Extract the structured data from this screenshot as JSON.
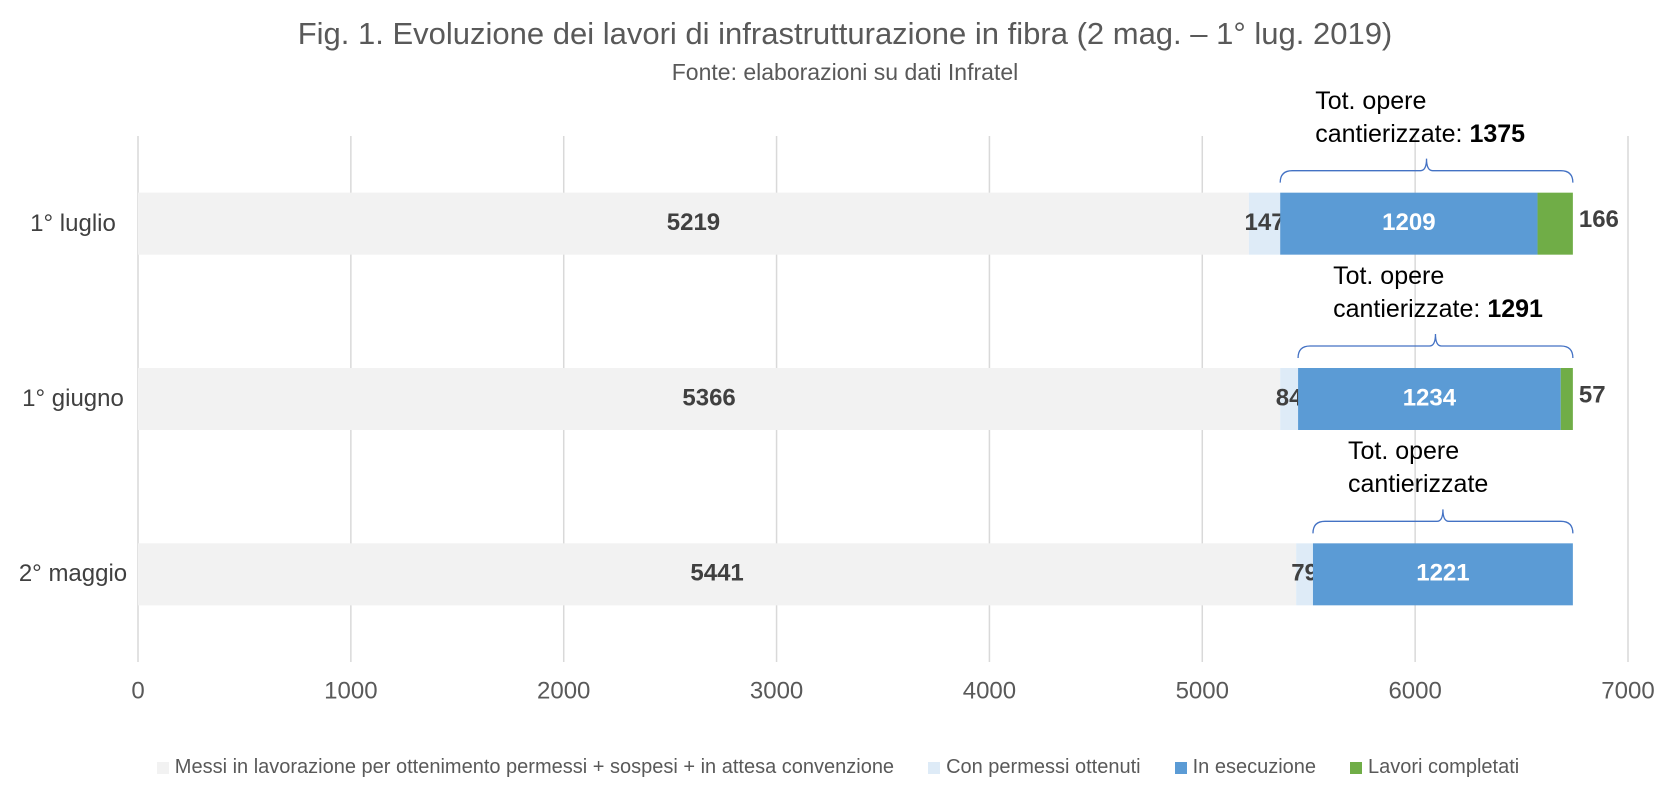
{
  "chart_data": {
    "type": "stacked-bar-horizontal",
    "title": "Fig. 1. Evoluzione dei lavori di infrastrutturazione in fibra (2 mag. – 1° lug. 2019)",
    "subtitle": "Fonte: elaborazioni su dati Infratel",
    "categories": [
      "1° luglio",
      "1° giugno",
      "2° maggio"
    ],
    "series": [
      {
        "name": "Messi in lavorazione per ottenimento permessi + sospesi + in attesa convenzione",
        "color": "#f2f2f2",
        "values": [
          5219,
          5366,
          5441
        ]
      },
      {
        "name": "Con permessi ottenuti",
        "color": "#deebf7",
        "values": [
          147,
          84,
          79
        ]
      },
      {
        "name": "In esecuzione",
        "color": "#5b9bd5",
        "values": [
          1209,
          1234,
          1221
        ]
      },
      {
        "name": "Lavori completati",
        "color": "#70ad47",
        "values": [
          166,
          57,
          null
        ]
      }
    ],
    "annotations": [
      {
        "text": "Tot. opere cantierizzate:",
        "value": 1375
      },
      {
        "text": "Tot. opere cantierizzate:",
        "value": 1291
      },
      {
        "text": "Tot. opere cantierizzate"
      }
    ],
    "xlim": [
      0,
      7000
    ],
    "xticks": [
      0,
      1000,
      2000,
      3000,
      4000,
      5000,
      6000,
      7000
    ],
    "grid": true
  }
}
